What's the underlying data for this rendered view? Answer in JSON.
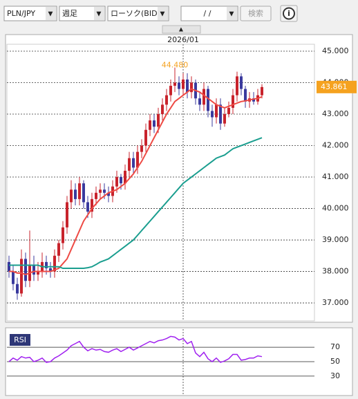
{
  "toolbar": {
    "pair": "PLN/JPY",
    "period": "週足",
    "chart_kind": "ローソク(BID)",
    "date": "/ /",
    "search": "検索"
  },
  "chart_data": [
    {
      "type": "candlestick",
      "categories": [
        null,
        null,
        null,
        null,
        null,
        null,
        null,
        null,
        null,
        null,
        null,
        null,
        null,
        null,
        null,
        null,
        null,
        null,
        null,
        null,
        null,
        null,
        null,
        null,
        null,
        null,
        null,
        null,
        null,
        null,
        null,
        null,
        null,
        null,
        null,
        null,
        null,
        null,
        null,
        null,
        null,
        null,
        "2026/01",
        null,
        null,
        null,
        null,
        null,
        null,
        null,
        null,
        null,
        null,
        null,
        null,
        null,
        null,
        null,
        null,
        null,
        null,
        null
      ],
      "open": [
        38.3,
        38.0,
        37.6,
        37.3,
        38.4,
        37.7,
        38.2,
        37.9,
        38.0,
        38.3,
        38.1,
        38.0,
        38.5,
        38.9,
        39.4,
        40.2,
        40.6,
        40.3,
        40.8,
        40.2,
        39.9,
        40.3,
        40.5,
        40.6,
        40.5,
        40.4,
        40.7,
        41.0,
        40.8,
        41.2,
        41.6,
        41.3,
        41.8,
        42.0,
        42.5,
        42.8,
        42.6,
        43.0,
        43.3,
        43.6,
        43.9,
        44.0,
        43.8,
        44.1,
        43.7,
        44.0,
        43.5,
        43.3,
        43.8,
        43.1,
        42.9,
        43.3,
        42.7,
        43.0,
        43.2,
        43.6,
        44.2,
        43.8,
        43.4,
        43.5,
        43.4,
        43.6
      ],
      "high": [
        38.5,
        38.2,
        37.8,
        38.7,
        38.6,
        39.3,
        38.5,
        38.3,
        38.6,
        38.5,
        38.3,
        38.7,
        39.0,
        39.6,
        40.4,
        40.9,
        40.8,
        41.0,
        40.9,
        40.4,
        40.5,
        40.7,
        40.8,
        40.8,
        40.7,
        40.9,
        41.2,
        41.1,
        41.4,
        41.8,
        41.8,
        42.0,
        42.2,
        42.7,
        43.0,
        43.0,
        43.2,
        43.5,
        43.8,
        44.1,
        44.48,
        44.2,
        44.3,
        44.3,
        44.2,
        44.1,
        43.7,
        44.0,
        43.9,
        43.3,
        43.5,
        43.5,
        43.2,
        43.4,
        43.8,
        44.35,
        44.3,
        43.9,
        43.7,
        43.7,
        43.8,
        43.95
      ],
      "low": [
        37.8,
        37.4,
        37.1,
        37.2,
        37.5,
        37.5,
        37.7,
        37.7,
        37.8,
        37.9,
        37.8,
        37.8,
        38.3,
        38.7,
        39.2,
        40.0,
        40.1,
        40.1,
        40.0,
        39.7,
        39.7,
        40.1,
        40.3,
        40.3,
        40.2,
        40.2,
        40.5,
        40.6,
        40.6,
        41.0,
        41.1,
        41.1,
        41.6,
        41.8,
        42.3,
        42.4,
        42.4,
        42.8,
        43.1,
        43.4,
        43.7,
        43.6,
        43.6,
        43.5,
        43.5,
        43.3,
        43.1,
        43.1,
        42.9,
        42.6,
        42.7,
        42.5,
        42.6,
        42.9,
        43.0,
        43.4,
        43.6,
        43.2,
        43.2,
        43.3,
        43.3,
        43.5
      ],
      "close": [
        38.0,
        37.6,
        37.3,
        38.4,
        37.7,
        38.2,
        37.9,
        38.0,
        38.3,
        38.1,
        38.0,
        38.5,
        38.9,
        39.4,
        40.2,
        40.6,
        40.3,
        40.8,
        40.2,
        39.9,
        40.3,
        40.5,
        40.6,
        40.5,
        40.4,
        40.7,
        41.0,
        40.8,
        41.2,
        41.6,
        41.3,
        41.8,
        42.0,
        42.5,
        42.8,
        42.6,
        43.0,
        43.3,
        43.6,
        43.9,
        44.0,
        43.8,
        44.1,
        43.7,
        44.0,
        43.5,
        43.3,
        43.8,
        43.1,
        42.9,
        43.3,
        42.7,
        43.0,
        43.2,
        43.6,
        44.2,
        43.8,
        43.4,
        43.5,
        43.4,
        43.6,
        43.861
      ],
      "up_color": "#c8232c",
      "down_color": "#3a3a9e",
      "lines": [
        {
          "color": "#ee4a44",
          "values": [
            38.0,
            38.0,
            37.95,
            37.95,
            37.9,
            37.95,
            38.0,
            38.0,
            38.0,
            38.0,
            38.0,
            38.05,
            38.1,
            38.25,
            38.4,
            38.7,
            39.0,
            39.3,
            39.6,
            39.8,
            40.0,
            40.15,
            40.3,
            40.4,
            40.5,
            40.55,
            40.6,
            40.7,
            40.8,
            40.95,
            41.1,
            41.3,
            41.5,
            41.75,
            42.0,
            42.25,
            42.5,
            42.75,
            43.0,
            43.2,
            43.4,
            43.5,
            43.6,
            43.7,
            43.8,
            43.75,
            43.7,
            43.6,
            43.5,
            43.4,
            43.3,
            43.25,
            43.2,
            43.25,
            43.3,
            43.35,
            43.4,
            43.42,
            43.45,
            43.48,
            43.5,
            43.55
          ]
        },
        {
          "color": "#1a9e8f",
          "values": [
            38.2,
            38.2,
            38.2,
            38.2,
            38.2,
            38.2,
            38.2,
            38.2,
            38.15,
            38.15,
            38.15,
            38.15,
            38.15,
            38.1,
            38.1,
            38.1,
            38.1,
            38.1,
            38.1,
            38.12,
            38.15,
            38.22,
            38.3,
            38.35,
            38.4,
            38.5,
            38.6,
            38.7,
            38.8,
            38.9,
            39.0,
            39.15,
            39.3,
            39.45,
            39.6,
            39.75,
            39.9,
            40.05,
            40.2,
            40.35,
            40.5,
            40.65,
            40.8,
            40.9,
            41.0,
            41.1,
            41.2,
            41.3,
            41.4,
            41.5,
            41.6,
            41.65,
            41.7,
            41.8,
            41.9,
            41.95,
            42.0,
            42.05,
            42.1,
            42.15,
            42.2,
            42.25
          ]
        }
      ],
      "ylim": [
        36.43,
        45.22
      ],
      "yticks": [
        {
          "value": 37,
          "label": "37.000"
        },
        {
          "value": 38,
          "label": "38.000"
        },
        {
          "value": 39,
          "label": "39.000"
        },
        {
          "value": 40,
          "label": "40.000"
        },
        {
          "value": 41,
          "label": "41.000"
        },
        {
          "value": 42,
          "label": "42.000"
        },
        {
          "value": 43,
          "label": "43.000"
        },
        {
          "value": 44,
          "label": "44.000"
        },
        {
          "value": 45,
          "label": "45.000"
        }
      ],
      "grid": true,
      "max_annotation": {
        "value": 44.48,
        "label": "44.480"
      },
      "last_price": 43.861,
      "last_price_color": "#f5a21f"
    },
    {
      "type": "line",
      "title": "RSI",
      "values": [
        50,
        55,
        52,
        57,
        55,
        56,
        50,
        52,
        55,
        49,
        50,
        55,
        58,
        62,
        66,
        72,
        75,
        78,
        70,
        65,
        68,
        66,
        67,
        64,
        63,
        66,
        68,
        64,
        67,
        70,
        66,
        69,
        72,
        75,
        78,
        76,
        79,
        80,
        82,
        85,
        84,
        80,
        82,
        75,
        78,
        62,
        57,
        63,
        54,
        50,
        55,
        49,
        51,
        54,
        60,
        60,
        52,
        53,
        55,
        55,
        58,
        57
      ],
      "color": "#a020f0",
      "ylim": [
        5,
        95
      ],
      "yticks": [
        30,
        50,
        70
      ]
    }
  ]
}
